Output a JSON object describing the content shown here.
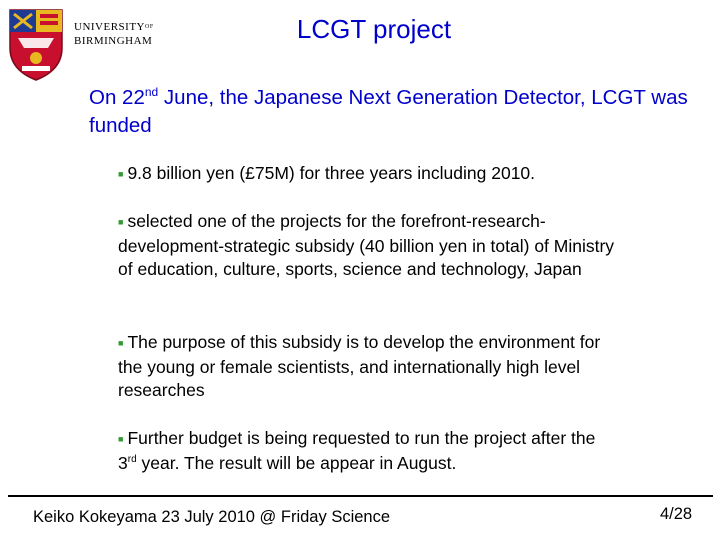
{
  "logo": {
    "wordmark_line1": "UNIVERSITY",
    "wordmark_sup": "OF",
    "wordmark_line2": "BIRMINGHAM"
  },
  "slide": {
    "title": "LCGT project",
    "heading": {
      "part1": "On 22",
      "sup": "nd",
      "part2": " June, the Japanese Next Generation Detector, LCGT was funded"
    },
    "bullets": [
      {
        "text": "9.8 billion yen (£75M) for three years including 2010."
      },
      {
        "text": "selected one of the projects for the forefront-research-development-strategic subsidy (40 billion yen in total) of Ministry of education, culture, sports, science and technology, Japan"
      },
      {
        "text": "The purpose of this subsidy is to develop the environment for the young or female scientists, and internationally high level researches"
      },
      {
        "part1": "Further budget is being requested to run the project after the 3",
        "sup": "rd",
        "part2": " year. The result will be appear in August."
      }
    ]
  },
  "footer": {
    "text": "Keiko Kokeyama 23 July 2010 @ Friday Science",
    "page": "4/28"
  },
  "colors": {
    "title": "#0000cc",
    "heading": "#0000cc",
    "bullet_marker": "#339933",
    "crest_red": "#c8102e",
    "crest_blue": "#1f3a93",
    "crest_gold": "#e8b820"
  }
}
